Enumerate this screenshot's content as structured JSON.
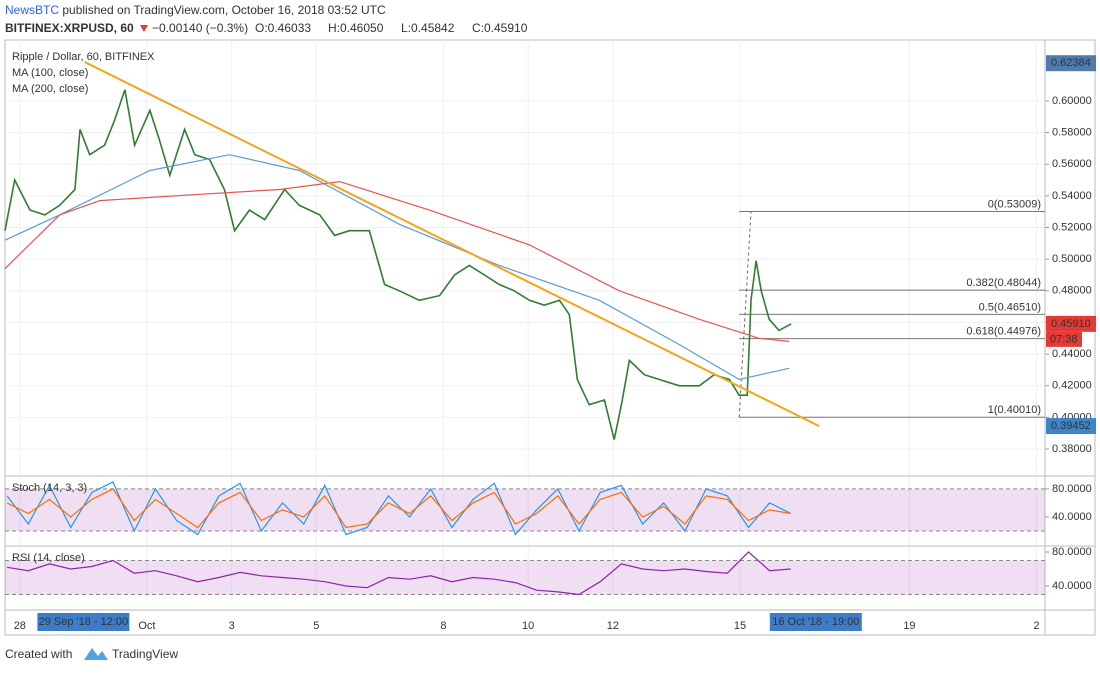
{
  "header": {
    "publisher": "NewsBTC",
    "text": " published on TradingView.com, October 16, 2018 03:52 UTC"
  },
  "symbol_bar": {
    "symbol": "BITFINEX:XRPUSD, 60",
    "change": "−0.00140 (−0.3%)",
    "open": "O:0.46033",
    "high": "H:0.46050",
    "low": "L:0.45842",
    "close": "C:0.45910"
  },
  "footer": {
    "created_with": "Created with",
    "brand": "TradingView"
  },
  "chart_data": [
    {
      "type": "line",
      "title": "Ripple / Dollar, 60, BITFINEX",
      "grid": true,
      "xlim": [
        -0.35,
        24.2
      ],
      "ylim": [
        0.3636,
        0.6385
      ],
      "xticks": [
        {
          "value": 0,
          "label": "28"
        },
        {
          "value": 3,
          "label": "Oct"
        },
        {
          "value": 5,
          "label": "3"
        },
        {
          "value": 7,
          "label": "5"
        },
        {
          "value": 10,
          "label": "8"
        },
        {
          "value": 12,
          "label": "10"
        },
        {
          "value": 14,
          "label": "12"
        },
        {
          "value": 17,
          "label": "15"
        },
        {
          "value": 21,
          "label": "19"
        },
        {
          "value": 24,
          "label": "2"
        }
      ],
      "yticks": [
        {
          "value": 0.38,
          "label": "0.38000"
        },
        {
          "value": 0.4,
          "label": "0.40000"
        },
        {
          "value": 0.42,
          "label": "0.42000"
        },
        {
          "value": 0.44,
          "label": "0.44000"
        },
        {
          "value": 0.46,
          "label": "0.46000"
        },
        {
          "value": 0.48,
          "label": "0.48000"
        },
        {
          "value": 0.5,
          "label": "0.50000"
        },
        {
          "value": 0.52,
          "label": "0.52000"
        },
        {
          "value": 0.54,
          "label": "0.54000"
        },
        {
          "value": 0.56,
          "label": "0.56000"
        },
        {
          "value": 0.58,
          "label": "0.58000"
        },
        {
          "value": 0.6,
          "label": "0.60000"
        }
      ],
      "series": [
        {
          "color": "#2e7d32",
          "x": [
            -0.35,
            -0.12,
            0.24,
            0.59,
            0.94,
            1.3,
            1.42,
            1.65,
            2.0,
            2.24,
            2.48,
            2.71,
            3.07,
            3.3,
            3.54,
            3.89,
            4.13,
            4.48,
            4.83,
            5.07,
            5.42,
            5.78,
            6.25,
            6.6,
            7.08,
            7.43,
            7.78,
            8.25,
            8.61,
            8.96,
            9.43,
            9.91,
            10.26,
            10.61,
            10.97,
            11.32,
            11.67,
            12.03,
            12.38,
            12.74,
            12.97,
            13.16,
            13.44,
            13.8,
            14.03,
            14.2,
            14.39,
            14.74,
            15.09,
            15.57,
            16.04,
            16.39,
            16.75,
            16.98,
            17.17,
            17.26,
            17.38,
            17.5,
            17.69,
            17.92,
            18.21
          ],
          "values": [
            0.518,
            0.55,
            0.531,
            0.528,
            0.534,
            0.544,
            0.582,
            0.566,
            0.572,
            0.588,
            0.607,
            0.572,
            0.594,
            0.575,
            0.553,
            0.582,
            0.566,
            0.563,
            0.544,
            0.518,
            0.531,
            0.525,
            0.544,
            0.534,
            0.528,
            0.515,
            0.518,
            0.518,
            0.484,
            0.48,
            0.474,
            0.477,
            0.49,
            0.496,
            0.49,
            0.484,
            0.48,
            0.474,
            0.471,
            0.474,
            0.465,
            0.424,
            0.408,
            0.411,
            0.386,
            0.408,
            0.436,
            0.427,
            0.424,
            0.42,
            0.42,
            0.427,
            0.424,
            0.414,
            0.414,
            0.474,
            0.499,
            0.48,
            0.462,
            0.455,
            0.4591
          ]
        },
        {
          "name": "MA (100, close)",
          "color": "#5b9bd5",
          "x": [
            -0.35,
            0.94,
            3.07,
            4.95,
            6.6,
            8.96,
            11.32,
            13.68,
            15.57,
            16.98,
            18.16
          ],
          "values": [
            0.512,
            0.528,
            0.556,
            0.566,
            0.556,
            0.522,
            0.496,
            0.474,
            0.446,
            0.424,
            0.431
          ]
        },
        {
          "name": "MA (200, close)",
          "color": "#e8534f",
          "x": [
            -0.35,
            0.94,
            1.89,
            4.25,
            6.13,
            7.55,
            9.67,
            12.03,
            14.15,
            16.04,
            17.45,
            18.16
          ],
          "values": [
            0.494,
            0.528,
            0.537,
            0.541,
            0.544,
            0.549,
            0.531,
            0.509,
            0.48,
            0.462,
            0.45,
            0.448
          ]
        }
      ],
      "trendline": {
        "color": "#f7a21b",
        "x": [
          1.53,
          18.87
        ],
        "values": [
          0.6246,
          0.3945
        ]
      },
      "fib": {
        "x_start": 16.98,
        "trend_x": [
          16.98,
          17.26
        ],
        "levels": [
          {
            "value": 0.53009,
            "label": "0(0.53009)"
          },
          {
            "value": 0.48044,
            "label": "0.382(0.48044)"
          },
          {
            "value": 0.4651,
            "label": "0.5(0.46510)"
          },
          {
            "value": 0.44976,
            "label": "0.618(0.44976)"
          },
          {
            "value": 0.4001,
            "label": "1(0.40010)"
          }
        ]
      },
      "y_markers": [
        {
          "value": 0.62384,
          "label": "0.62384",
          "color": "#4f7cac"
        },
        {
          "value": 0.39452,
          "label": "0.39452",
          "color": "#3d85c6"
        }
      ],
      "last_price": {
        "value": 0.4591,
        "label": "0.45910",
        "countdown": "07:38",
        "color": "#e53935"
      },
      "x_markers": [
        {
          "value": 1.5,
          "label": "29 Sep '18 - 12:00"
        },
        {
          "value": 18.79,
          "label": "16 Oct '18 - 19:00"
        }
      ]
    },
    {
      "type": "line",
      "title": "Stoch (14, 3, 3)",
      "ylim": [
        0,
        97
      ],
      "band": [
        20,
        80
      ],
      "band_color": "#9c27b0",
      "yticks": [
        {
          "value": 80,
          "label": "80.0000"
        },
        {
          "value": 40,
          "label": "40.0000"
        }
      ],
      "series": [
        {
          "color": "#2196f3",
          "x": [
            -0.3,
            0.2,
            0.7,
            1.2,
            1.7,
            2.2,
            2.7,
            3.2,
            3.7,
            4.2,
            4.7,
            5.2,
            5.7,
            6.2,
            6.7,
            7.2,
            7.7,
            8.2,
            8.7,
            9.2,
            9.7,
            10.2,
            10.7,
            11.2,
            11.7,
            12.2,
            12.7,
            13.2,
            13.7,
            14.2,
            14.7,
            15.2,
            15.7,
            16.2,
            16.7,
            17.2,
            17.7,
            18.2
          ],
          "values": [
            70,
            30,
            85,
            25,
            75,
            90,
            20,
            80,
            35,
            15,
            70,
            88,
            20,
            60,
            30,
            85,
            15,
            25,
            70,
            40,
            80,
            25,
            65,
            88,
            15,
            50,
            80,
            20,
            75,
            85,
            30,
            60,
            20,
            80,
            70,
            25,
            60,
            45
          ]
        },
        {
          "color": "#ff6d00",
          "x": [
            -0.3,
            0.2,
            0.7,
            1.2,
            1.7,
            2.2,
            2.7,
            3.2,
            3.7,
            4.2,
            4.7,
            5.2,
            5.7,
            6.2,
            6.7,
            7.2,
            7.7,
            8.2,
            8.7,
            9.2,
            9.7,
            10.2,
            10.7,
            11.2,
            11.7,
            12.2,
            12.7,
            13.2,
            13.7,
            14.2,
            14.7,
            15.2,
            15.7,
            16.2,
            16.7,
            17.2,
            17.7,
            18.2
          ],
          "values": [
            60,
            45,
            65,
            40,
            65,
            80,
            35,
            65,
            45,
            25,
            60,
            75,
            35,
            50,
            40,
            70,
            25,
            30,
            60,
            45,
            70,
            35,
            60,
            75,
            30,
            45,
            70,
            30,
            65,
            75,
            40,
            55,
            30,
            70,
            65,
            35,
            50,
            45
          ]
        }
      ]
    },
    {
      "type": "line",
      "title": "RSI (14, close)",
      "ylim": [
        23.5,
        85.9
      ],
      "band": [
        30,
        70
      ],
      "band_color": "#9c27b0",
      "yticks": [
        {
          "value": 80,
          "label": "80.0000"
        },
        {
          "value": 40,
          "label": "40.0000"
        }
      ],
      "series": [
        {
          "color": "#8e24aa",
          "x": [
            -0.3,
            0.2,
            0.7,
            1.2,
            1.7,
            2.2,
            2.7,
            3.2,
            3.7,
            4.2,
            4.7,
            5.2,
            5.7,
            6.2,
            6.7,
            7.2,
            7.7,
            8.2,
            8.7,
            9.2,
            9.7,
            10.2,
            10.7,
            11.2,
            11.7,
            12.2,
            12.7,
            13.2,
            13.7,
            14.2,
            14.7,
            15.2,
            15.7,
            16.2,
            16.7,
            17.2,
            17.7,
            18.2
          ],
          "values": [
            62,
            58,
            66,
            60,
            63,
            70,
            55,
            58,
            52,
            45,
            50,
            56,
            52,
            50,
            48,
            45,
            40,
            38,
            50,
            48,
            52,
            45,
            50,
            48,
            44,
            35,
            33,
            30,
            45,
            66,
            60,
            58,
            60,
            57,
            55,
            80,
            58,
            60
          ]
        }
      ]
    }
  ]
}
